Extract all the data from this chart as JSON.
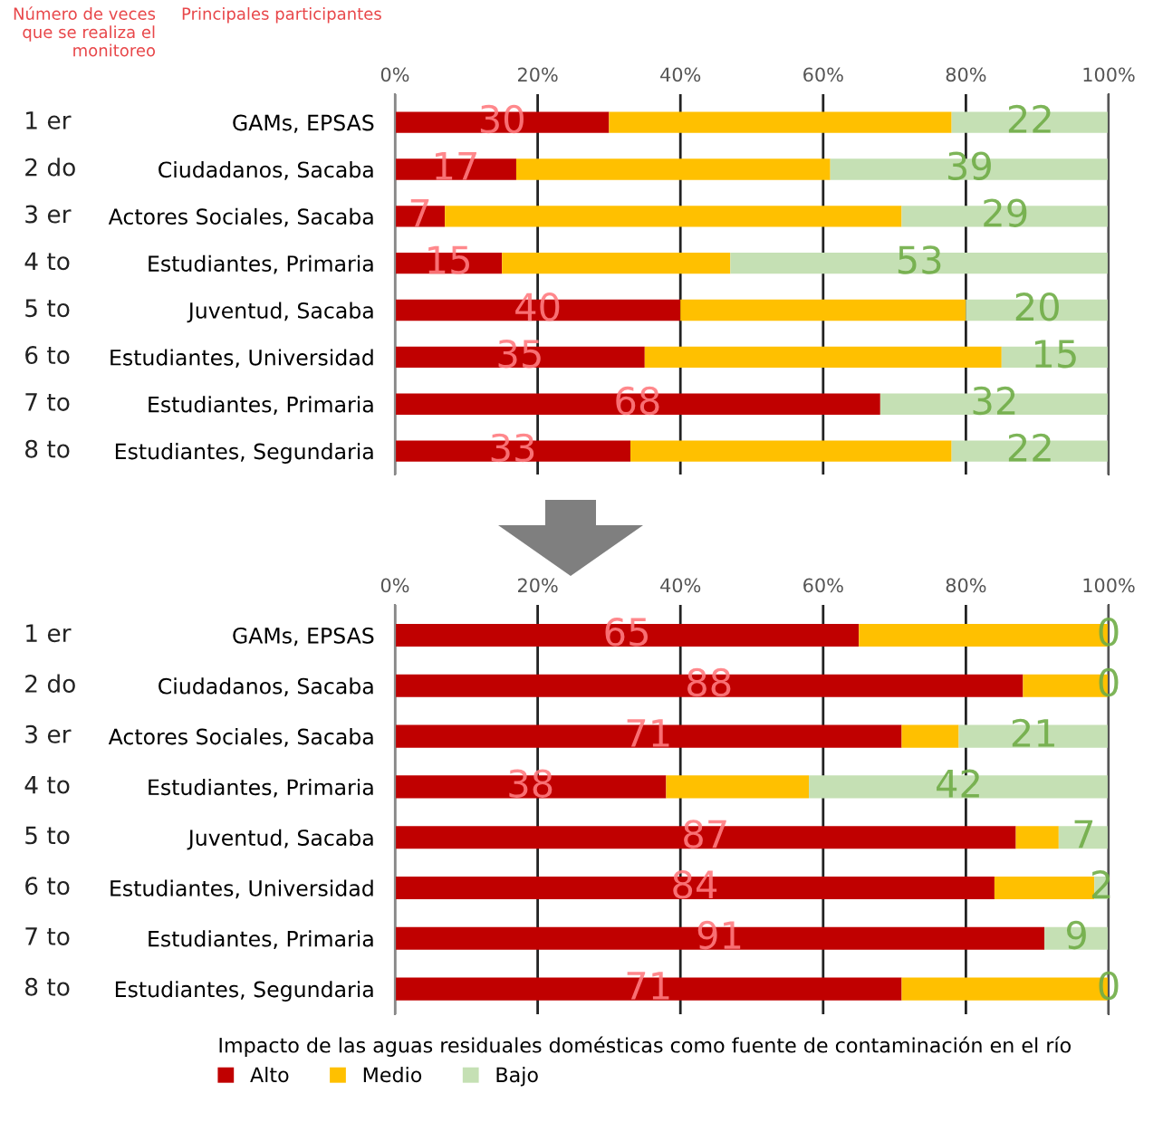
{
  "chart_data": [
    {
      "type": "bar",
      "orientation": "horizontal",
      "stacked": true,
      "legend": false,
      "grid": "x",
      "annotations": [
        "Número de veces que se realiza el monitoreo",
        "Principales participantes"
      ],
      "categories": [
        "GAMs, EPSAS",
        "Ciudadanos, Sacaba",
        "Actores Sociales, Sacaba",
        "Estudiantes, Primaria",
        "Juventud, Sacaba",
        "Estudiantes, Universidad",
        "Estudiantes, Primaria",
        "Estudiantes, Segundaria"
      ],
      "y2_categories": [
        "1 er",
        "2 do",
        "3 er",
        "4 to",
        "5 to",
        "6 to",
        "7 to",
        "8 to"
      ],
      "xlim": [
        0,
        100
      ],
      "xticks": [
        {
          "value": 0,
          "label": "0%"
        },
        {
          "value": 20,
          "label": "20%"
        },
        {
          "value": 40,
          "label": "40%"
        },
        {
          "value": 60,
          "label": "60%"
        },
        {
          "value": 80,
          "label": "80%"
        },
        {
          "value": 100,
          "label": "100%"
        }
      ],
      "series": [
        {
          "color": "#c00000",
          "values": [
            30,
            17,
            7,
            15,
            40,
            35,
            68,
            33
          ],
          "value_labels": [
            "30",
            "17",
            "7",
            "15",
            "40",
            "35",
            "68",
            "33"
          ]
        },
        {
          "color": "#ffc000",
          "values": [
            48,
            44,
            64,
            32,
            40,
            50,
            0,
            45
          ]
        },
        {
          "color": "#c5e0b4",
          "values": [
            22,
            39,
            29,
            53,
            20,
            15,
            32,
            22
          ],
          "value_labels": [
            "22",
            "39",
            "29",
            "53",
            "20",
            "15",
            "32",
            "22"
          ]
        }
      ]
    },
    {
      "type": "bar",
      "orientation": "horizontal",
      "stacked": true,
      "legend": "bottom",
      "grid": "x",
      "legend_title": "Impacto de las aguas residuales domésticas como fuente de contaminación en el río",
      "categories": [
        "GAMs, EPSAS",
        "Ciudadanos, Sacaba",
        "Actores Sociales, Sacaba",
        "Estudiantes, Primaria",
        "Juventud, Sacaba",
        "Estudiantes, Universidad",
        "Estudiantes, Primaria",
        "Estudiantes, Segundaria"
      ],
      "y2_categories": [
        "1 er",
        "2 do",
        "3 er",
        "4 to",
        "5 to",
        "6 to",
        "7 to",
        "8 to"
      ],
      "xlim": [
        0,
        100
      ],
      "xticks": [
        {
          "value": 0,
          "label": "0%"
        },
        {
          "value": 20,
          "label": "20%"
        },
        {
          "value": 40,
          "label": "40%"
        },
        {
          "value": 60,
          "label": "60%"
        },
        {
          "value": 80,
          "label": "80%"
        },
        {
          "value": 100,
          "label": "100%"
        }
      ],
      "series": [
        {
          "name": "Alto",
          "color": "#c00000",
          "values": [
            65,
            88,
            71,
            38,
            87,
            84,
            91,
            71
          ],
          "value_labels": [
            "65",
            "88",
            "71",
            "38",
            "87",
            "84",
            "91",
            "71"
          ]
        },
        {
          "name": "Medio",
          "color": "#ffc000",
          "values": [
            35,
            12,
            8,
            20,
            6,
            14,
            0,
            29
          ]
        },
        {
          "name": "Bajo",
          "color": "#c5e0b4",
          "values": [
            0,
            0,
            21,
            42,
            7,
            2,
            9,
            0
          ],
          "value_labels": [
            "0",
            "0",
            "21",
            "42",
            "7",
            "2",
            "9",
            "0"
          ]
        }
      ]
    }
  ]
}
